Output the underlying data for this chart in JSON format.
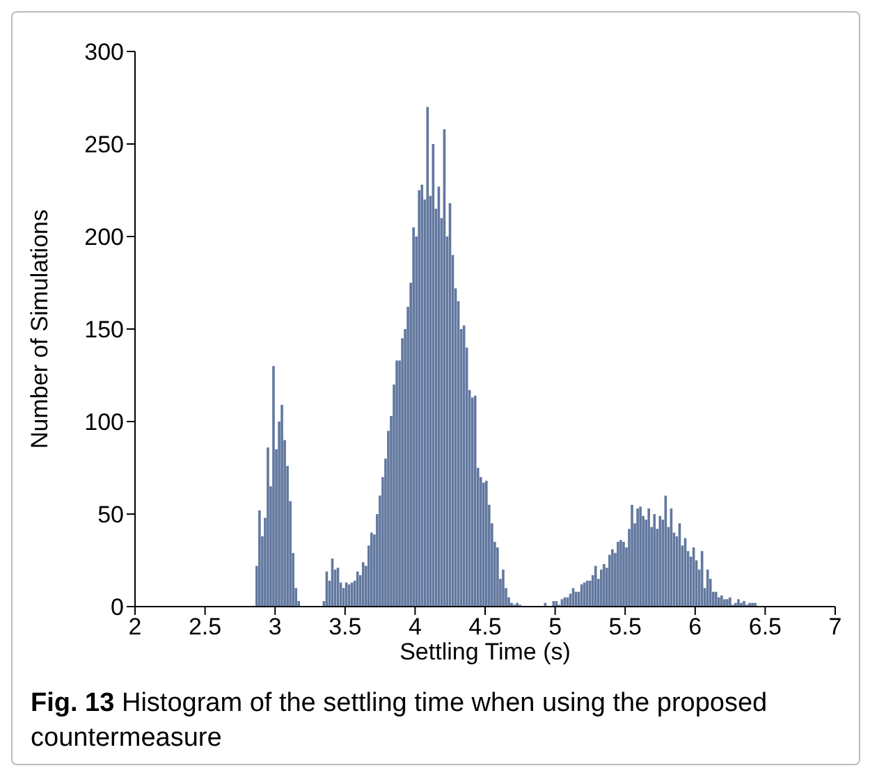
{
  "chart_data": {
    "type": "histogram",
    "xlabel": "Settling Time (s)",
    "ylabel": "Number of Simulations",
    "annotations": [
      "Fig. 13 Histogram of the settling time when using the proposed countermeasure"
    ],
    "color": "#62789f",
    "xlim": [
      2,
      7
    ],
    "ylim": [
      0,
      300
    ],
    "xticks": [
      2,
      2.5,
      3,
      3.5,
      4,
      4.5,
      5,
      5.5,
      6,
      6.5,
      7
    ],
    "yticks": [
      0,
      50,
      100,
      150,
      200,
      250,
      300
    ],
    "bins": [
      2.86,
      2.88,
      2.9,
      2.92,
      2.94,
      2.96,
      2.98,
      3,
      3.02,
      3.04,
      3.06,
      3.08,
      3.1,
      3.12,
      3.14,
      3.16,
      3.18,
      3.34,
      3.36,
      3.38,
      3.4,
      3.42,
      3.44,
      3.46,
      3.48,
      3.5,
      3.52,
      3.54,
      3.56,
      3.58,
      3.6,
      3.62,
      3.64,
      3.66,
      3.68,
      3.7,
      3.72,
      3.74,
      3.76,
      3.78,
      3.8,
      3.82,
      3.84,
      3.86,
      3.88,
      3.9,
      3.92,
      3.94,
      3.96,
      3.98,
      4,
      4.02,
      4.04,
      4.06,
      4.08,
      4.1,
      4.12,
      4.14,
      4.16,
      4.18,
      4.2,
      4.22,
      4.24,
      4.26,
      4.28,
      4.3,
      4.32,
      4.34,
      4.36,
      4.38,
      4.4,
      4.42,
      4.44,
      4.46,
      4.48,
      4.5,
      4.52,
      4.54,
      4.56,
      4.58,
      4.6,
      4.62,
      4.64,
      4.66,
      4.68,
      4.7,
      4.72,
      4.74,
      4.76,
      4.92,
      4.94,
      4.98,
      5,
      5.02,
      5.04,
      5.06,
      5.08,
      5.1,
      5.12,
      5.14,
      5.16,
      5.18,
      5.2,
      5.22,
      5.24,
      5.26,
      5.28,
      5.3,
      5.32,
      5.34,
      5.36,
      5.38,
      5.4,
      5.42,
      5.44,
      5.46,
      5.48,
      5.5,
      5.52,
      5.54,
      5.56,
      5.58,
      5.6,
      5.62,
      5.64,
      5.66,
      5.68,
      5.7,
      5.72,
      5.74,
      5.76,
      5.78,
      5.8,
      5.82,
      5.84,
      5.86,
      5.88,
      5.9,
      5.92,
      5.94,
      5.96,
      5.98,
      6,
      6.02,
      6.04,
      6.06,
      6.08,
      6.1,
      6.12,
      6.14,
      6.16,
      6.18,
      6.2,
      6.22,
      6.24,
      6.26,
      6.28,
      6.3,
      6.32,
      6.34,
      6.36,
      6.38,
      6.4,
      6.42,
      6.44
    ],
    "values": [
      22,
      52,
      38,
      48,
      86,
      65,
      130,
      85,
      100,
      109,
      90,
      76,
      57,
      29,
      10,
      3,
      0,
      3,
      19,
      14,
      26,
      20,
      21,
      13,
      10,
      13,
      12,
      13,
      14,
      19,
      17,
      24,
      22,
      33,
      40,
      39,
      50,
      60,
      70,
      80,
      95,
      103,
      120,
      133,
      133,
      145,
      150,
      162,
      175,
      205,
      200,
      225,
      228,
      220,
      270,
      222,
      250,
      215,
      227,
      210,
      258,
      200,
      218,
      190,
      172,
      165,
      150,
      152,
      140,
      117,
      113,
      114,
      75,
      70,
      67,
      68,
      55,
      45,
      35,
      32,
      15,
      20,
      10,
      5,
      2,
      1,
      2,
      1,
      0,
      2,
      0,
      3,
      3,
      1,
      4,
      5,
      5,
      7,
      10,
      8,
      8,
      12,
      13,
      14,
      14,
      17,
      22,
      15,
      20,
      23,
      21,
      28,
      31,
      29,
      35,
      36,
      35,
      32,
      42,
      55,
      45,
      53,
      54,
      49,
      47,
      53,
      43,
      50,
      42,
      49,
      47,
      60,
      43,
      53,
      40,
      38,
      45,
      33,
      37,
      30,
      27,
      32,
      25,
      20,
      30,
      10,
      20,
      15,
      8,
      8,
      5,
      6,
      4,
      4,
      5,
      1,
      2,
      4,
      2,
      3,
      1,
      2,
      2,
      2
    ]
  }
}
